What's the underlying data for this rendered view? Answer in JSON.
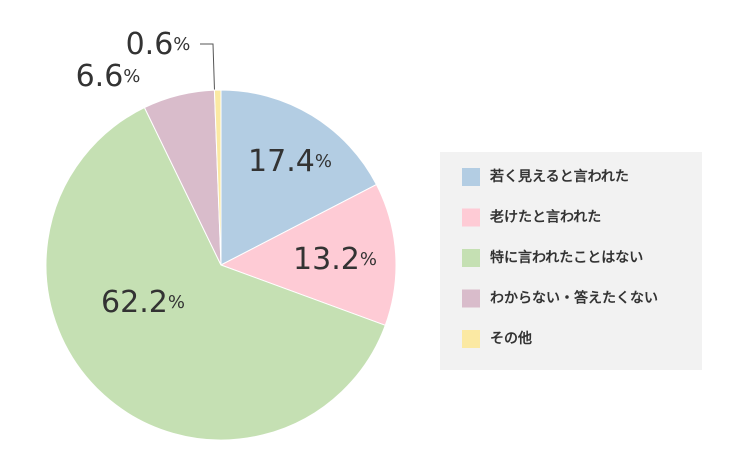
{
  "chart_data": {
    "type": "pie",
    "categories": [
      "若く見えると言われた",
      "老けたと言われた",
      "特に言われたことはない",
      "わからない・答えたくない",
      "その他"
    ],
    "values": [
      17.4,
      13.2,
      62.2,
      6.6,
      0.6
    ],
    "value_labels": [
      "17.4%",
      "13.2%",
      "62.2%",
      "6.6%",
      "0.6%"
    ],
    "colors": [
      "#b3cde3",
      "#fecbd5",
      "#c5e0b3",
      "#d9bccb",
      "#fbe9a3"
    ]
  }
}
